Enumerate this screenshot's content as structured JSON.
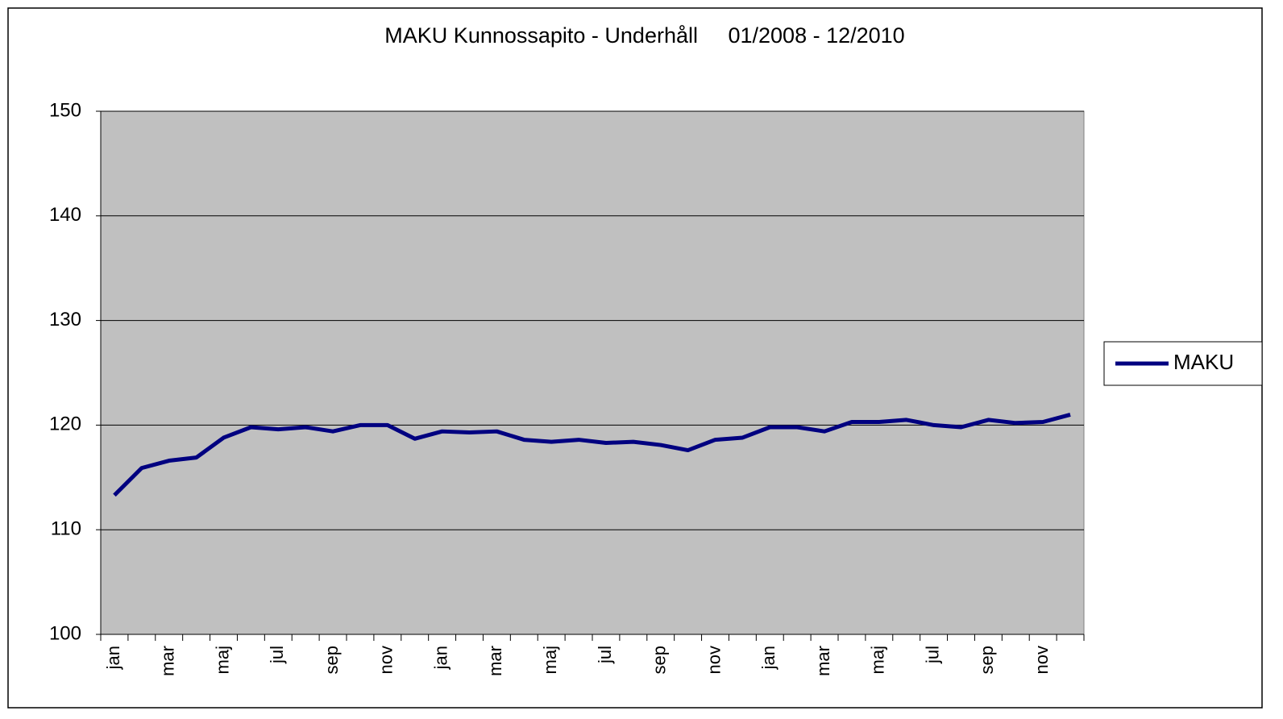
{
  "chart_data": {
    "type": "line",
    "title": "MAKU Kunnossapito - Underhåll     01/2008 - 12/2010",
    "categories": [
      "jan",
      null,
      "mar",
      null,
      "maj",
      null,
      "jul",
      null,
      "sep",
      null,
      "nov",
      null,
      "jan",
      null,
      "mar",
      null,
      "maj",
      null,
      "jul",
      null,
      "sep",
      null,
      "nov",
      null,
      "jan",
      null,
      "mar",
      null,
      "maj",
      null,
      "jul",
      null,
      "sep",
      null,
      "nov",
      null
    ],
    "series": [
      {
        "name": "MAKU",
        "color": "#000080",
        "values": [
          113.3,
          115.9,
          116.6,
          116.9,
          118.8,
          119.8,
          119.6,
          119.8,
          119.4,
          120.0,
          120.0,
          118.7,
          119.4,
          119.3,
          119.4,
          118.6,
          118.4,
          118.6,
          118.3,
          118.4,
          118.1,
          117.6,
          118.6,
          118.8,
          119.8,
          119.8,
          119.4,
          120.3,
          120.3,
          120.5,
          120.0,
          119.8,
          120.5,
          120.2,
          120.3,
          121.0
        ]
      }
    ],
    "ylim": [
      100,
      150
    ],
    "yticks": [
      100,
      110,
      120,
      130,
      140,
      150
    ],
    "grid": true,
    "legend": "right",
    "plot_background": "#c0c0c0"
  }
}
